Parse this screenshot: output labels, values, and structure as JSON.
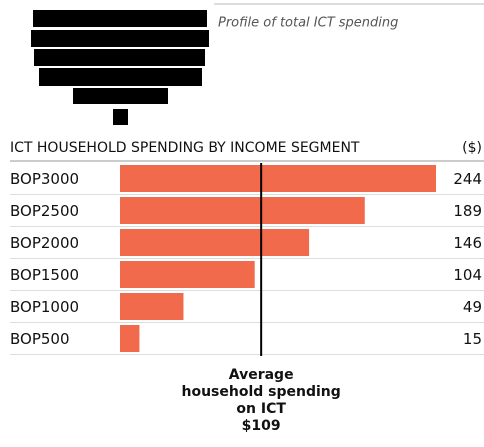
{
  "chart_data": {
    "type": "bar",
    "orientation": "horizontal",
    "caption": "Profile of total ICT spending",
    "title": "ICT HOUSEHOLD SPENDING BY INCOME SEGMENT",
    "unit": "($)",
    "categories": [
      "BOP3000",
      "BOP2500",
      "BOP2000",
      "BOP1500",
      "BOP1000",
      "BOP500"
    ],
    "values": [
      244,
      189,
      146,
      104,
      49,
      15
    ],
    "color": "#f26a4c",
    "average": {
      "lines": [
        "Average",
        "household spending",
        "on ICT"
      ],
      "value": 109,
      "value_label": "$109"
    }
  }
}
